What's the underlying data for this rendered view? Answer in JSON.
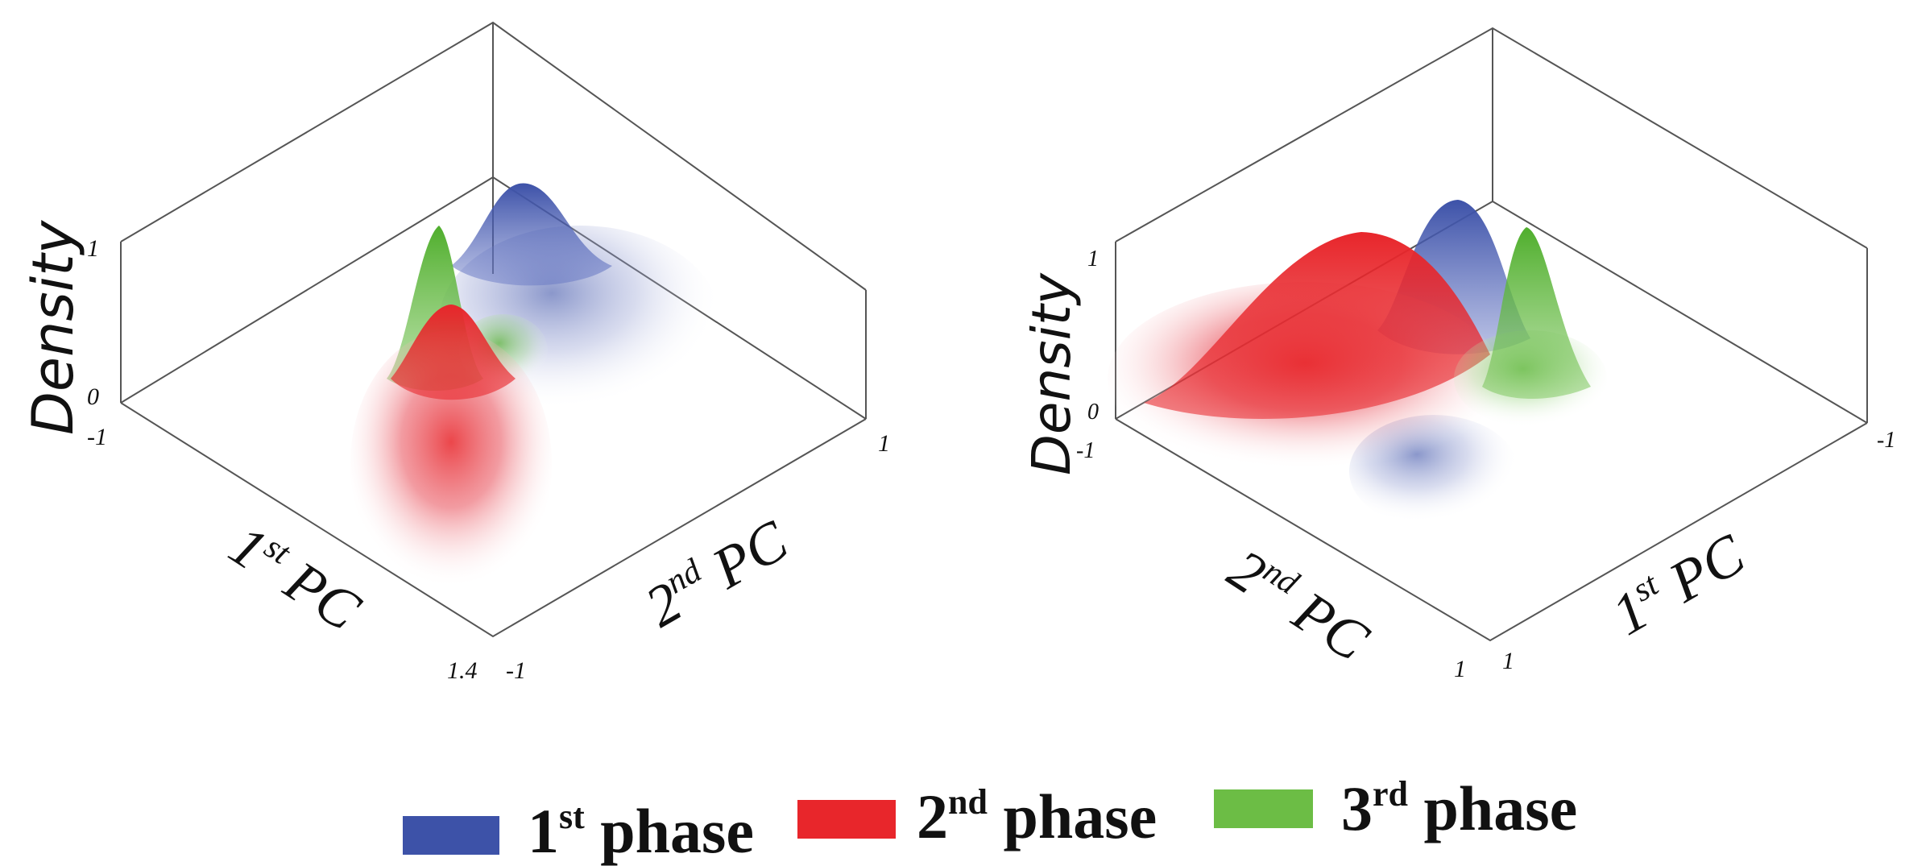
{
  "chart_data": [
    {
      "type": "surface",
      "zlabel": "Density",
      "axis1_label": {
        "base": "1",
        "sup": "st",
        "rest": " PC"
      },
      "axis2_label": {
        "base": "2",
        "sup": "nd",
        "rest": " PC"
      },
      "z_ticks": [
        "1",
        "0"
      ],
      "corner_ticks": {
        "left": "-1",
        "right": "1",
        "bottom_a": "1.4",
        "bottom_b": "-1"
      },
      "series": [
        {
          "name": "1st phase",
          "color": "#3d52a8",
          "peak_density": 1.0
        },
        {
          "name": "2nd phase",
          "color": "#e8262b",
          "peak_density": 0.75
        },
        {
          "name": "3rd phase",
          "color": "#56b132",
          "peak_density": 0.9
        }
      ]
    },
    {
      "type": "surface",
      "zlabel": "Density",
      "axis1_label": {
        "base": "2",
        "sup": "nd",
        "rest": " PC"
      },
      "axis2_label": {
        "base": "1",
        "sup": "st",
        "rest": " PC"
      },
      "z_ticks": [
        "1",
        "0"
      ],
      "corner_ticks": {
        "left": "-1",
        "right": "-1",
        "bottom_a": "1",
        "bottom_b": "1"
      },
      "series": [
        {
          "name": "1st phase",
          "color": "#3d52a8",
          "peak_density": 1.0
        },
        {
          "name": "2nd phase",
          "color": "#e8262b",
          "peak_density": 0.95
        },
        {
          "name": "3rd phase",
          "color": "#56b132",
          "peak_density": 0.9
        }
      ]
    }
  ],
  "legend": [
    {
      "base": "1",
      "sup": "st",
      "rest": " phase",
      "color": "#3d52a8"
    },
    {
      "base": "2",
      "sup": "nd",
      "rest": " phase",
      "color": "#e8262b"
    },
    {
      "base": "3",
      "sup": "rd",
      "rest": " phase",
      "color": "#6cbd45"
    }
  ]
}
